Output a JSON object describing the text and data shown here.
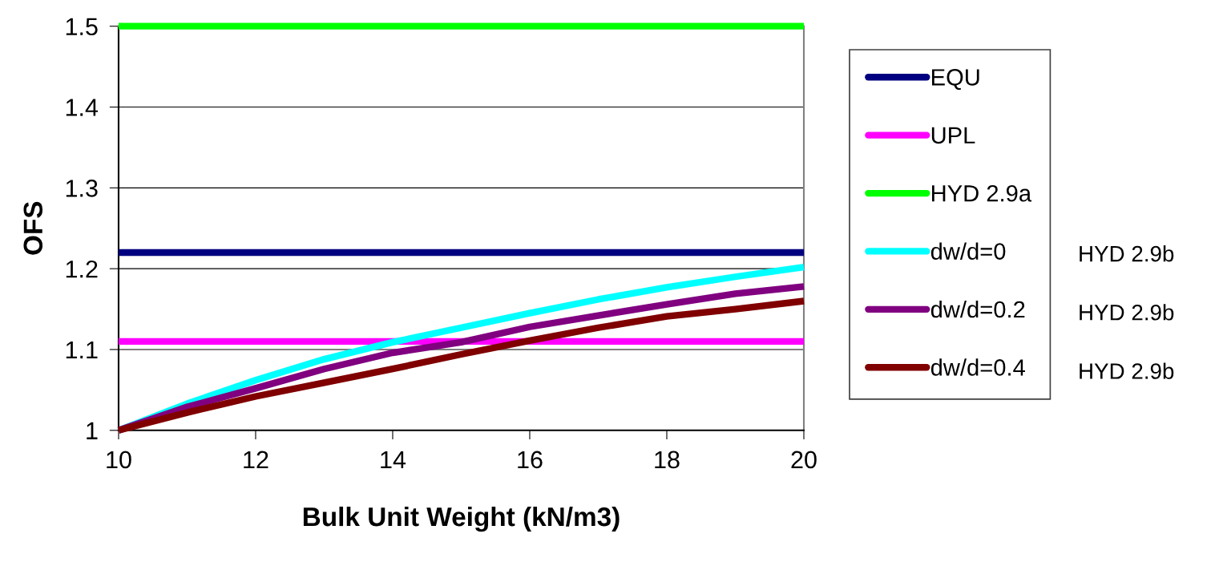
{
  "chart_data": {
    "type": "line",
    "xlabel": "Bulk Unit Weight (kN/m3)",
    "ylabel": "OFS",
    "xlim": [
      10,
      20
    ],
    "xticks": [
      10,
      12,
      14,
      16,
      18,
      20
    ],
    "ylim": [
      1,
      1.5
    ],
    "yticks": [
      1,
      1.1,
      1.2,
      1.3,
      1.4,
      1.5
    ],
    "grid": "y",
    "legend": "right",
    "marker": "none",
    "line_style": "solid",
    "series": [
      {
        "name": "EQU",
        "color": "#000080",
        "x": [
          10,
          20
        ],
        "values": [
          1.22,
          1.22
        ]
      },
      {
        "name": "UPL",
        "color": "#ff00ff",
        "x": [
          10,
          20
        ],
        "values": [
          1.11,
          1.11
        ]
      },
      {
        "name": "HYD 2.9a",
        "color": "#00ff00",
        "x": [
          10,
          20
        ],
        "values": [
          1.5,
          1.5
        ]
      },
      {
        "name": "dw/d=0",
        "color": "#00ffff",
        "x": [
          10,
          11,
          12,
          13,
          14,
          15,
          16,
          17,
          18,
          19,
          20
        ],
        "values": [
          1.0,
          1.033,
          1.062,
          1.088,
          1.109,
          1.127,
          1.145,
          1.162,
          1.177,
          1.19,
          1.202
        ]
      },
      {
        "name": "dw/d=0.2",
        "color": "#800080",
        "x": [
          10,
          11,
          12,
          13,
          14,
          15,
          16,
          17,
          18,
          19,
          20
        ],
        "values": [
          1.0,
          1.029,
          1.052,
          1.076,
          1.096,
          1.109,
          1.128,
          1.142,
          1.156,
          1.169,
          1.178
        ]
      },
      {
        "name": "dw/d=0.4",
        "color": "#800000",
        "x": [
          10,
          11,
          12,
          13,
          14,
          15,
          16,
          17,
          18,
          19,
          20
        ],
        "values": [
          1.0,
          1.022,
          1.042,
          1.059,
          1.076,
          1.094,
          1.111,
          1.127,
          1.141,
          1.15,
          1.16
        ]
      }
    ],
    "annotations": [
      "HYD 2.9b",
      "HYD 2.9b",
      "HYD 2.9b"
    ]
  }
}
